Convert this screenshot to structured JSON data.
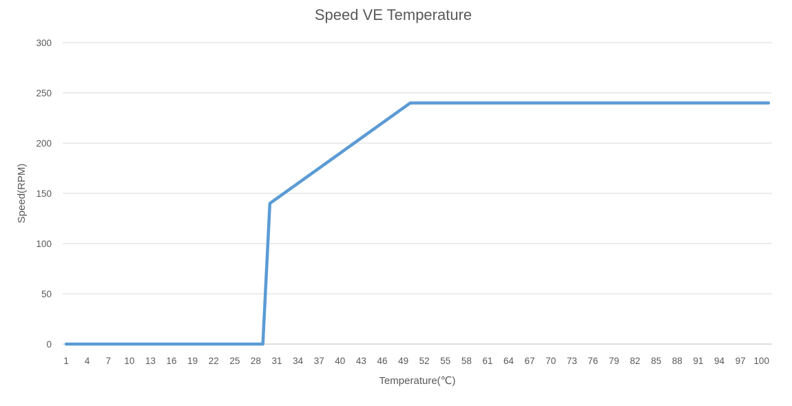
{
  "chart_data": {
    "type": "line",
    "title": "Speed VE Temperature",
    "xlabel": "Temperature(℃)",
    "ylabel": "Speed(RPM)",
    "ylim": [
      0,
      300
    ],
    "yticks": [
      0,
      50,
      100,
      150,
      200,
      250,
      300
    ],
    "xticks": [
      "1",
      "4",
      "7",
      "10",
      "13",
      "16",
      "19",
      "22",
      "25",
      "28",
      "31",
      "34",
      "37",
      "40",
      "43",
      "46",
      "49",
      "52",
      "55",
      "58",
      "61",
      "64",
      "67",
      "70",
      "73",
      "76",
      "79",
      "82",
      "85",
      "88",
      "91",
      "94",
      "97",
      "100"
    ],
    "x_range": [
      1,
      101
    ],
    "grid": true,
    "legend": "none",
    "line_color": "#5b9bd5",
    "series": [
      {
        "x": [
          1,
          29,
          30,
          50,
          101
        ],
        "values": [
          0,
          0,
          140,
          240,
          240
        ]
      }
    ]
  }
}
